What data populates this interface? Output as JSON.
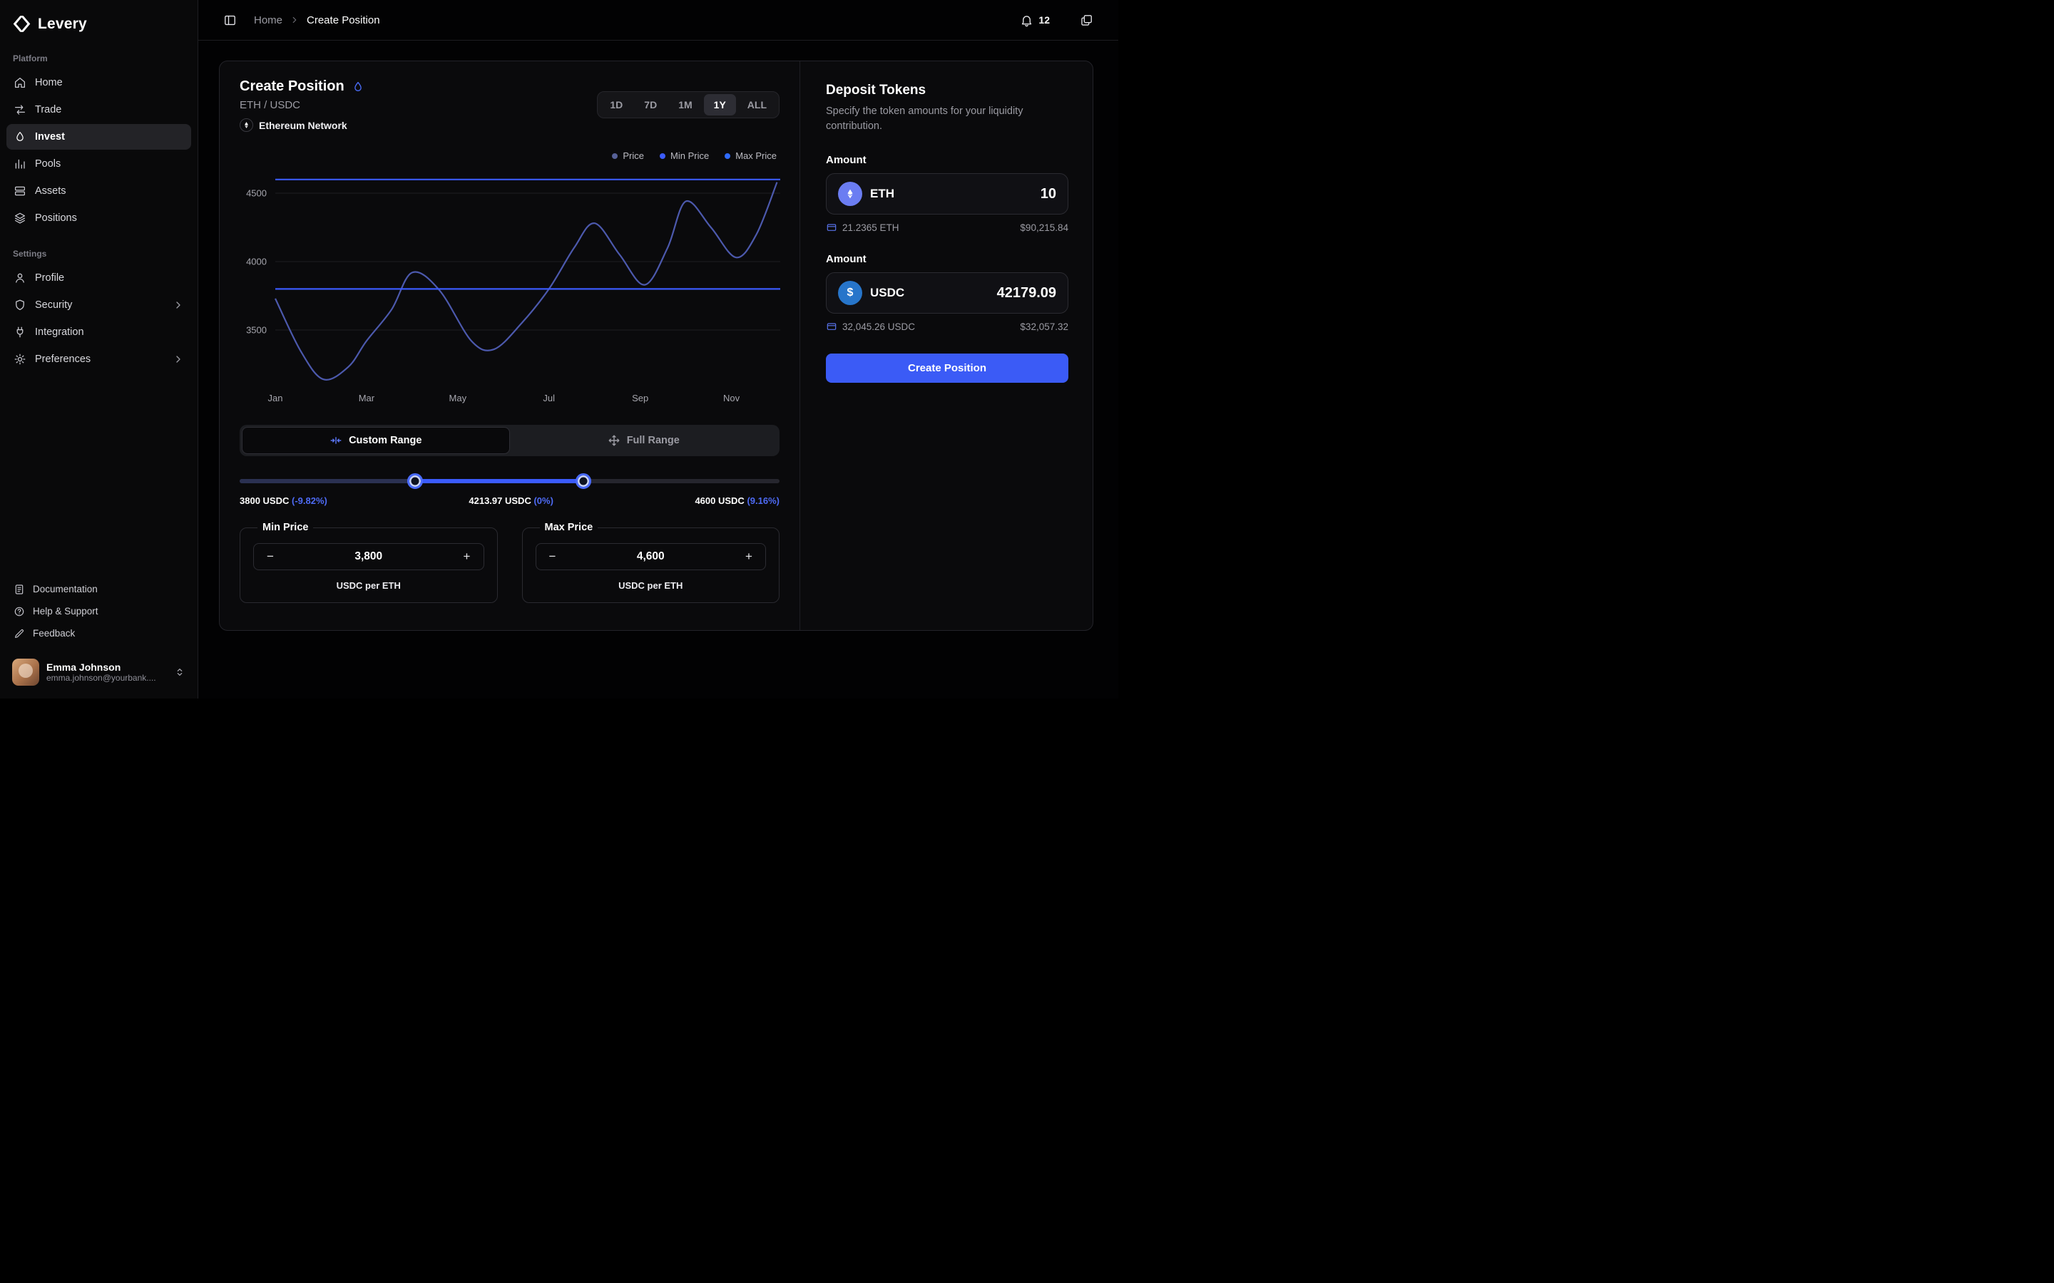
{
  "brand": {
    "name": "Levery"
  },
  "sidebar": {
    "sections": [
      {
        "label": "Platform",
        "items": [
          {
            "label": "Home"
          },
          {
            "label": "Trade"
          },
          {
            "label": "Invest",
            "active": true
          },
          {
            "label": "Pools"
          },
          {
            "label": "Assets"
          },
          {
            "label": "Positions"
          }
        ]
      },
      {
        "label": "Settings",
        "items": [
          {
            "label": "Profile"
          },
          {
            "label": "Security",
            "chevron": true
          },
          {
            "label": "Integration"
          },
          {
            "label": "Preferences",
            "chevron": true
          }
        ]
      }
    ],
    "footer_items": [
      {
        "label": "Documentation"
      },
      {
        "label": "Help & Support"
      },
      {
        "label": "Feedback"
      }
    ],
    "user": {
      "name": "Emma Johnson",
      "email": "emma.johnson@yourbank...."
    }
  },
  "topbar": {
    "breadcrumb": {
      "home": "Home",
      "current": "Create Position"
    },
    "notification_count": "12"
  },
  "position_card": {
    "title": "Create Position",
    "pair": "ETH / USDC",
    "network": "Ethereum Network",
    "time_ranges": [
      "1D",
      "7D",
      "1M",
      "1Y",
      "ALL"
    ],
    "active_range": "1Y",
    "legend": [
      {
        "label": "Price",
        "color": "#566097"
      },
      {
        "label": "Min Price",
        "color": "#3b5bfc"
      },
      {
        "label": "Max Price",
        "color": "#2f6bff"
      }
    ],
    "range_mode": {
      "custom": "Custom Range",
      "full": "Full Range",
      "active": "custom"
    },
    "slider": {
      "min_label": "3800 USDC",
      "min_pct": "(-9.82%)",
      "current_label": "4213.97 USDC",
      "current_pct": "(0%)",
      "max_label": "4600 USDC",
      "max_pct": "(9.16%)",
      "handles_pct": [
        32.5,
        63.7
      ]
    },
    "min_price": {
      "legend": "Min Price",
      "value": "3,800",
      "unit": "USDC per ETH",
      "minus": "−",
      "plus": "+"
    },
    "max_price": {
      "legend": "Max Price",
      "value": "4,600",
      "unit": "USDC per ETH",
      "minus": "−",
      "plus": "+"
    }
  },
  "chart_data": {
    "type": "line",
    "title": "ETH / USDC price, 1Y view",
    "x_unit": "month",
    "x_ticks": [
      "Jan",
      "Mar",
      "May",
      "Jul",
      "Sep",
      "Nov"
    ],
    "y_ticks": [
      3500,
      4000,
      4500
    ],
    "ylim": [
      3100,
      4700
    ],
    "min_price": 3800,
    "max_price": 4600,
    "current_price": 4213.97,
    "series": [
      {
        "name": "Price",
        "points": [
          [
            0,
            3730
          ],
          [
            0.55,
            3350
          ],
          [
            1.05,
            3140
          ],
          [
            1.6,
            3230
          ],
          [
            2.0,
            3420
          ],
          [
            2.55,
            3650
          ],
          [
            3.0,
            3920
          ],
          [
            3.6,
            3790
          ],
          [
            4.3,
            3420
          ],
          [
            4.8,
            3360
          ],
          [
            5.4,
            3550
          ],
          [
            6.0,
            3800
          ],
          [
            6.55,
            4100
          ],
          [
            7.0,
            4280
          ],
          [
            7.55,
            4050
          ],
          [
            8.1,
            3830
          ],
          [
            8.6,
            4100
          ],
          [
            9.0,
            4440
          ],
          [
            9.55,
            4250
          ],
          [
            10.1,
            4030
          ],
          [
            10.55,
            4200
          ],
          [
            11.0,
            4580
          ]
        ]
      }
    ],
    "legend_position": "top-right",
    "grid": true
  },
  "deposit": {
    "title": "Deposit Tokens",
    "description": "Specify the token amounts for your liquidity contribution.",
    "amount_label": "Amount",
    "tokens": [
      {
        "symbol": "ETH",
        "amount": "10",
        "balance": "21.2365 ETH",
        "fiat": "$90,215.84"
      },
      {
        "symbol": "USDC",
        "amount": "42179.09",
        "balance": "32,045.26 USDC",
        "fiat": "$32,057.32"
      }
    ],
    "submit_label": "Create Position"
  }
}
